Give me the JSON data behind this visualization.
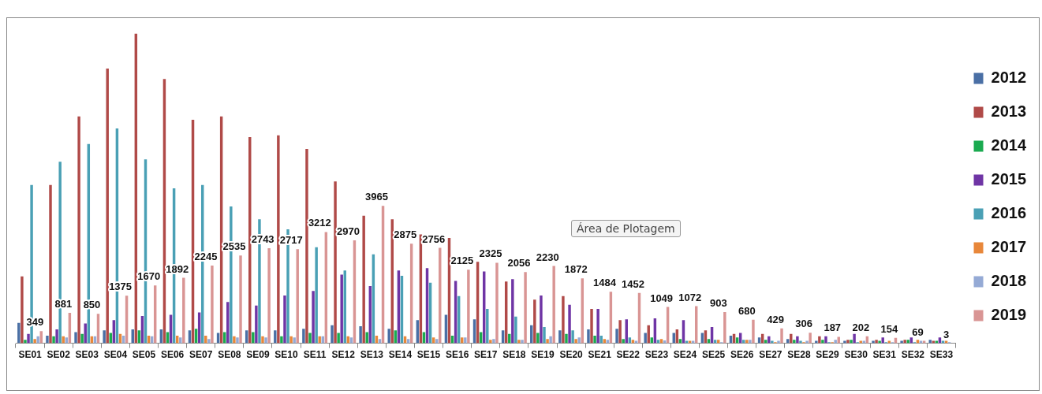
{
  "chart_data": {
    "type": "bar",
    "categories": [
      "SE01",
      "SE02",
      "SE03",
      "SE04",
      "SE05",
      "SE06",
      "SE07",
      "SE08",
      "SE09",
      "SE10",
      "SE11",
      "SE12",
      "SE13",
      "SE14",
      "SE15",
      "SE16",
      "SE17",
      "SE18",
      "SE19",
      "SE20",
      "SE21",
      "SE22",
      "SE23",
      "SE24",
      "SE25",
      "SE26",
      "SE27",
      "SE28",
      "SE29",
      "SE30",
      "SE31",
      "SE32",
      "SE33"
    ],
    "series": [
      {
        "name": "2012",
        "color": "#4a6fa5",
        "values": [
          590,
          220,
          320,
          370,
          400,
          400,
          370,
          300,
          370,
          370,
          420,
          520,
          490,
          420,
          670,
          820,
          690,
          370,
          520,
          370,
          400,
          420,
          300,
          300,
          300,
          220,
          170,
          120,
          70,
          70,
          70,
          70,
          100
        ]
      },
      {
        "name": "2013",
        "color": "#b04a48",
        "values": [
          1930,
          4570,
          6550,
          7930,
          8940,
          7630,
          6450,
          6550,
          5950,
          6000,
          5610,
          4670,
          3680,
          3580,
          3140,
          3040,
          2350,
          1780,
          1260,
          1360,
          990,
          670,
          520,
          400,
          370,
          270,
          270,
          270,
          200,
          100,
          100,
          100,
          70
        ]
      },
      {
        "name": "2014",
        "color": "#1aaa50",
        "values": [
          100,
          200,
          270,
          300,
          370,
          320,
          420,
          320,
          320,
          200,
          300,
          300,
          320,
          370,
          320,
          220,
          320,
          270,
          300,
          270,
          220,
          120,
          170,
          120,
          120,
          170,
          100,
          100,
          100,
          100,
          70,
          100,
          70
        ]
      },
      {
        "name": "2015",
        "color": "#6f35a5",
        "values": [
          270,
          400,
          570,
          670,
          790,
          820,
          890,
          1190,
          1090,
          1380,
          1510,
          1980,
          1650,
          2100,
          2170,
          1800,
          2070,
          1850,
          1380,
          1110,
          990,
          690,
          720,
          670,
          470,
          300,
          200,
          200,
          200,
          270,
          170,
          170,
          170
        ]
      },
      {
        "name": "2016",
        "color": "#4aa0b5",
        "values": [
          4570,
          5240,
          5750,
          6200,
          5310,
          4470,
          4570,
          3950,
          3580,
          3290,
          2770,
          2100,
          2570,
          1950,
          1750,
          1360,
          990,
          770,
          470,
          370,
          220,
          170,
          100,
          70,
          100,
          100,
          70,
          70,
          30,
          30,
          30,
          30,
          70
        ]
      },
      {
        "name": "2017",
        "color": "#e8873a",
        "values": [
          120,
          200,
          200,
          270,
          220,
          220,
          220,
          200,
          200,
          200,
          200,
          200,
          220,
          200,
          170,
          170,
          100,
          100,
          120,
          120,
          120,
          100,
          120,
          70,
          100,
          100,
          30,
          30,
          30,
          70,
          70,
          100,
          70
        ]
      },
      {
        "name": "2018",
        "color": "#95aad5",
        "values": [
          200,
          170,
          200,
          220,
          200,
          170,
          120,
          170,
          170,
          170,
          200,
          170,
          120,
          120,
          120,
          170,
          120,
          100,
          200,
          170,
          100,
          70,
          80,
          70,
          30,
          100,
          70,
          70,
          100,
          70,
          30,
          70,
          30
        ]
      },
      {
        "name": "2019",
        "color": "#d99594",
        "values": [
          349,
          881,
          850,
          1375,
          1670,
          1892,
          2245,
          2535,
          2743,
          2717,
          3212,
          2970,
          3965,
          2875,
          2756,
          2125,
          2325,
          2056,
          2230,
          1872,
          1484,
          1452,
          1049,
          1072,
          903,
          680,
          429,
          306,
          187,
          202,
          154,
          69,
          3
        ],
        "value_labels": [
          "349",
          "881",
          "850",
          "1375",
          "1670",
          "1892",
          "2245",
          "2535",
          "2743",
          "2717",
          "3212",
          "2970",
          "3965",
          "2875",
          "2756",
          "2125",
          "2325",
          "2056",
          "2230",
          "1872",
          "1484",
          "1452",
          "1049",
          "1072",
          "903",
          "680",
          "429",
          "306",
          "187",
          "202",
          "154",
          "69",
          "3"
        ]
      }
    ],
    "tick_labels": "x",
    "grid": false,
    "legend": "right",
    "annotations": [
      "Área de Plotagem"
    ]
  }
}
